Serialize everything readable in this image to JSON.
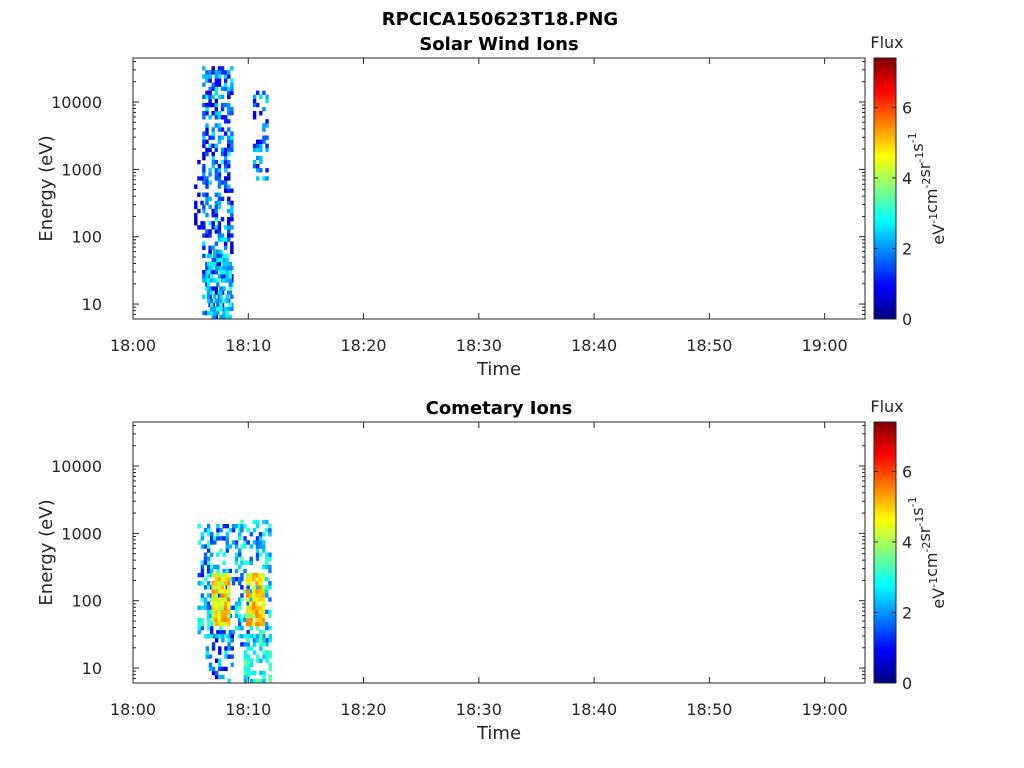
{
  "figure": {
    "title": "RPCICA150623T18.PNG",
    "colormap": "jet"
  },
  "chart_data": [
    {
      "type": "heatmap",
      "title": "Solar Wind Ions",
      "xlabel": "Time",
      "ylabel": "Energy (eV)",
      "x_tick_labels": [
        "18:00",
        "18:10",
        "18:20",
        "18:30",
        "18:40",
        "18:50",
        "19:00"
      ],
      "x_tick_minutes": [
        0,
        10,
        20,
        30,
        40,
        50,
        60
      ],
      "xlim_minutes": [
        0,
        63.5
      ],
      "y_scale": "log",
      "ylim": [
        6,
        45000
      ],
      "y_tick_values": [
        10,
        100,
        1000,
        10000
      ],
      "y_tick_labels": [
        "10",
        "100",
        "1000",
        "10000"
      ],
      "colorbar": {
        "label_top": "Flux",
        "unit_base": [
          "eV",
          "cm",
          "sr",
          "s"
        ],
        "unit_exp": [
          "-1",
          "-2",
          "-1",
          "-1"
        ],
        "ticks": [
          0,
          2,
          4,
          6
        ],
        "tick_labels": [
          "0",
          "2",
          "4",
          "6"
        ],
        "range": [
          0,
          7.4
        ]
      },
      "clusters": [
        {
          "t_start": 6.0,
          "t_end": 8.5,
          "e_min": 6,
          "e_max": 32000,
          "flux_low": 0.4,
          "flux_high": 2.8,
          "density": 0.5
        },
        {
          "t_start": 6.4,
          "t_end": 8.4,
          "e_min": 6,
          "e_max": 60,
          "flux_low": 1.8,
          "flux_high": 3.2,
          "density": 0.55
        },
        {
          "t_start": 5.3,
          "t_end": 6.0,
          "e_min": 120,
          "e_max": 1300,
          "flux_low": 0.5,
          "flux_high": 1.2,
          "density": 0.25
        },
        {
          "t_start": 10.4,
          "t_end": 11.7,
          "e_min": 600,
          "e_max": 14000,
          "flux_low": 0.8,
          "flux_high": 2.6,
          "density": 0.3
        }
      ]
    },
    {
      "type": "heatmap",
      "title": "Cometary Ions",
      "xlabel": "Time",
      "ylabel": "Energy (eV)",
      "x_tick_labels": [
        "18:00",
        "18:10",
        "18:20",
        "18:30",
        "18:40",
        "18:50",
        "19:00"
      ],
      "x_tick_minutes": [
        0,
        10,
        20,
        30,
        40,
        50,
        60
      ],
      "xlim_minutes": [
        0,
        63.5
      ],
      "y_scale": "log",
      "ylim": [
        6,
        45000
      ],
      "y_tick_values": [
        10,
        100,
        1000,
        10000
      ],
      "y_tick_labels": [
        "10",
        "100",
        "1000",
        "10000"
      ],
      "colorbar": {
        "label_top": "Flux",
        "unit_base": [
          "eV",
          "cm",
          "sr",
          "s"
        ],
        "unit_exp": [
          "-1",
          "-2",
          "-1",
          "-1"
        ],
        "ticks": [
          0,
          2,
          4,
          6
        ],
        "tick_labels": [
          "0",
          "2",
          "4",
          "6"
        ],
        "range": [
          0,
          7.4
        ]
      },
      "clusters": [
        {
          "t_start": 5.6,
          "t_end": 9.2,
          "e_min": 25,
          "e_max": 1300,
          "flux_low": 1.0,
          "flux_high": 3.4,
          "density": 0.45
        },
        {
          "t_start": 6.8,
          "t_end": 8.2,
          "e_min": 40,
          "e_max": 250,
          "flux_low": 3.8,
          "flux_high": 5.6,
          "density": 0.9
        },
        {
          "t_start": 6.3,
          "t_end": 8.6,
          "e_min": 6,
          "e_max": 30,
          "flux_low": 0.6,
          "flux_high": 3.0,
          "density": 0.4
        },
        {
          "t_start": 9.3,
          "t_end": 11.9,
          "e_min": 20,
          "e_max": 1400,
          "flux_low": 1.0,
          "flux_high": 3.4,
          "density": 0.45
        },
        {
          "t_start": 9.8,
          "t_end": 11.2,
          "e_min": 40,
          "e_max": 250,
          "flux_low": 3.8,
          "flux_high": 5.6,
          "density": 0.9
        },
        {
          "t_start": 9.6,
          "t_end": 11.9,
          "e_min": 6,
          "e_max": 30,
          "flux_low": 2.0,
          "flux_high": 3.6,
          "density": 0.5
        }
      ]
    }
  ]
}
